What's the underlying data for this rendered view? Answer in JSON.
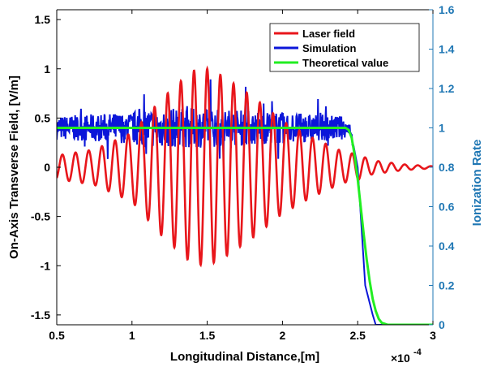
{
  "chart_data": {
    "type": "line",
    "xlabel": "Longitudinal Distance,[m]",
    "ylabel_left": "On-Axis Transverse Field, [V/m]",
    "ylabel_right": "Ionization Rate",
    "x_multiplier_base": "×10",
    "x_multiplier_exp": "-4",
    "xlim": [
      0.5,
      3
    ],
    "ylim_left": [
      -1.6,
      1.6
    ],
    "ylim_right": [
      0,
      1.6
    ],
    "x_ticks": [
      "0.5",
      "1",
      "1.5",
      "2",
      "2.5",
      "3"
    ],
    "y_left_ticks": [
      "-1.5",
      "-1",
      "-0.5",
      "0",
      "0.5",
      "1",
      "1.5"
    ],
    "y_right_ticks": [
      "0",
      "0.2",
      "0.4",
      "0.6",
      "0.8",
      "1",
      "1.2",
      "1.4",
      "1.6"
    ],
    "legend": {
      "position": "top-right"
    },
    "colors": {
      "laser": "#e8161b",
      "simulation": "#0b16d9",
      "theory": "#22ee22",
      "right_axis": "#1f77b4"
    },
    "series": [
      {
        "name": "Laser field",
        "axis": "left",
        "description_points": {
          "x": [
            0.5,
            0.75,
            1.0,
            1.2,
            1.4,
            1.5,
            1.6,
            1.8,
            2.0,
            2.2,
            2.4,
            2.5,
            2.6,
            2.7,
            2.8,
            3.0
          ],
          "envelope": [
            0.12,
            0.18,
            0.35,
            0.7,
            0.98,
            1.0,
            0.93,
            0.72,
            0.47,
            0.3,
            0.16,
            0.13,
            0.07,
            0.05,
            0.03,
            0.01
          ]
        },
        "period": 0.0875
      },
      {
        "name": "Simulation",
        "axis": "right",
        "x": [
          0.5,
          2.45,
          2.5,
          2.55,
          2.6,
          2.62,
          3.0
        ],
        "y": [
          1.0,
          1.0,
          0.8,
          0.2,
          0.05,
          0.0,
          0.0
        ],
        "noise_amplitude_points": {
          "x": [
            0.5,
            1.0,
            1.05,
            1.5,
            2.0,
            2.4,
            2.45
          ],
          "amp": [
            0.06,
            0.08,
            0.1,
            0.1,
            0.08,
            0.06,
            0.03
          ]
        }
      },
      {
        "name": "Theoretical value",
        "axis": "right",
        "x": [
          0.5,
          2.42,
          2.44,
          2.46,
          2.48,
          2.5,
          2.52,
          2.54,
          2.56,
          2.58,
          2.6,
          2.62,
          2.64,
          2.66,
          2.68,
          2.7,
          3.0
        ],
        "y": [
          1.0,
          1.0,
          0.99,
          0.95,
          0.86,
          0.74,
          0.6,
          0.46,
          0.33,
          0.22,
          0.13,
          0.07,
          0.03,
          0.01,
          0.005,
          0.0,
          0.0
        ]
      }
    ]
  }
}
